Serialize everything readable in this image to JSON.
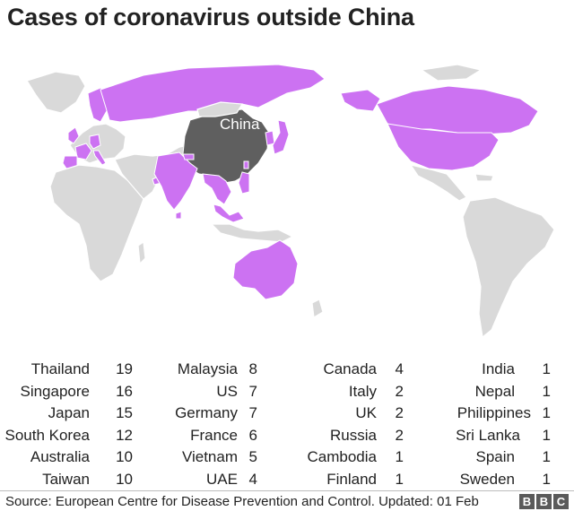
{
  "title": "Cases of coronavirus outside China",
  "map": {
    "label": "China",
    "colors": {
      "affected": "#cc72f2",
      "china": "#5f5f5f",
      "other": "#d9d9d9"
    }
  },
  "columns": [
    [
      {
        "country": "Thailand",
        "cases": "19"
      },
      {
        "country": "Singapore",
        "cases": "16"
      },
      {
        "country": "Japan",
        "cases": "15"
      },
      {
        "country": "South Korea",
        "cases": "12"
      },
      {
        "country": "Australia",
        "cases": "10"
      },
      {
        "country": "Taiwan",
        "cases": "10"
      }
    ],
    [
      {
        "country": "Malaysia",
        "cases": "8"
      },
      {
        "country": "US",
        "cases": "7"
      },
      {
        "country": "Germany",
        "cases": "7"
      },
      {
        "country": "France",
        "cases": "6"
      },
      {
        "country": "Vietnam",
        "cases": "5"
      },
      {
        "country": "UAE",
        "cases": "4"
      }
    ],
    [
      {
        "country": "Canada",
        "cases": "4"
      },
      {
        "country": "Italy",
        "cases": "2"
      },
      {
        "country": "UK",
        "cases": "2"
      },
      {
        "country": "Russia",
        "cases": "2"
      },
      {
        "country": "Cambodia",
        "cases": "1"
      },
      {
        "country": "Finland",
        "cases": "1"
      }
    ],
    [
      {
        "country": "India",
        "cases": "1"
      },
      {
        "country": "Nepal",
        "cases": "1"
      },
      {
        "country": "Philippines",
        "cases": "1"
      },
      {
        "country": "Sri Lanka",
        "cases": "1"
      },
      {
        "country": "Spain",
        "cases": "1"
      },
      {
        "country": "Sweden",
        "cases": "1"
      }
    ]
  ],
  "footer": {
    "source": "Source: European Centre for Disease Prevention and Control. Updated: 01 Feb",
    "logo": [
      "B",
      "B",
      "C"
    ]
  }
}
